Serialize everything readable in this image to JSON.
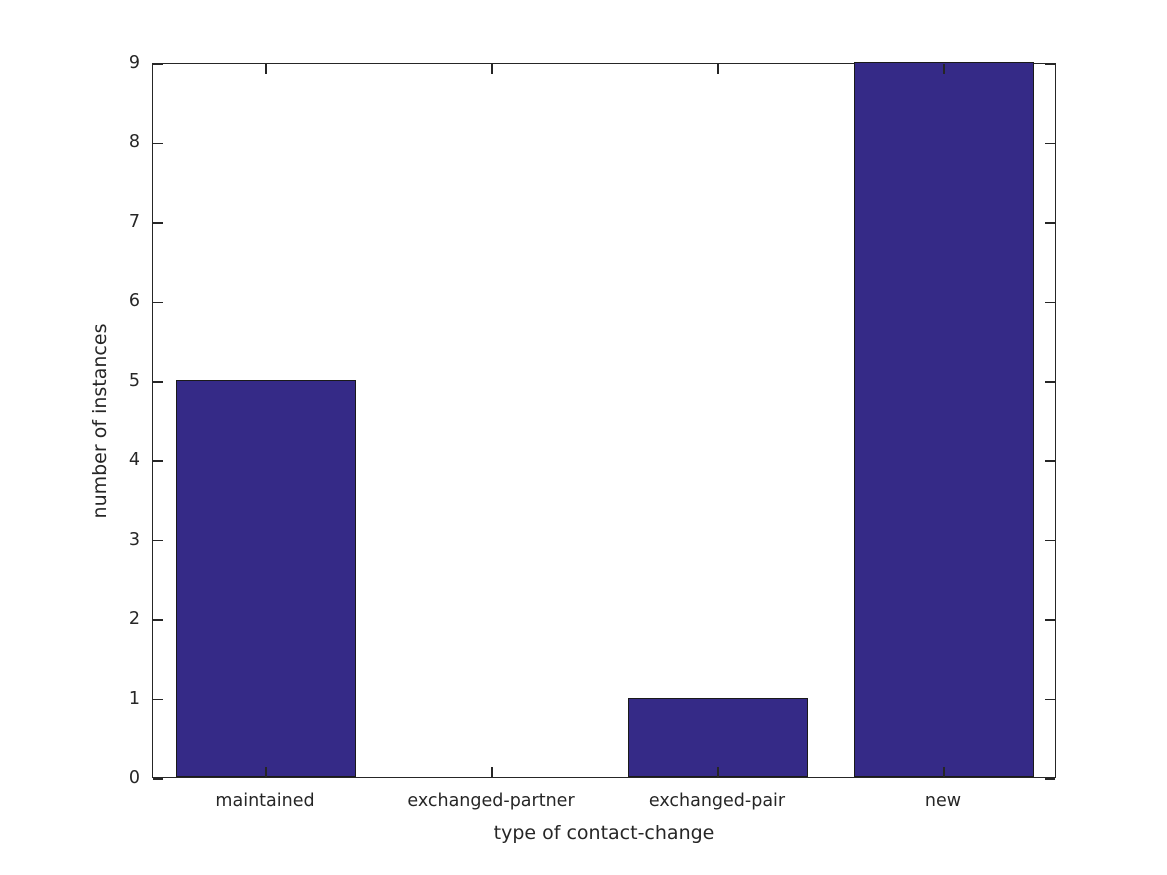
{
  "chart_data": {
    "type": "bar",
    "categories": [
      "maintained",
      "exchanged-partner",
      "exchanged-pair",
      "new"
    ],
    "values": [
      5,
      0,
      1,
      9
    ],
    "xlabel": "type of contact-change",
    "ylabel": "number of instances",
    "ylim": [
      0,
      9
    ],
    "yticks": [
      0,
      1,
      2,
      3,
      4,
      5,
      6,
      7,
      8,
      9
    ],
    "grid": false,
    "legend": null,
    "box": "all-four-sides-with-inward-ticks",
    "bar_width_fraction": 0.8,
    "colors": {
      "bar_fill": "#352a87",
      "bar_edge": "#1a1a1a",
      "axis": "#262626",
      "text": "#262626",
      "background": "#ffffff"
    }
  }
}
